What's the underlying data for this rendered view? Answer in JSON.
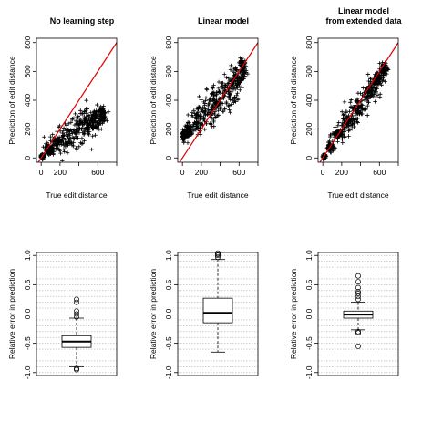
{
  "colors": {
    "diagonal": "#e00000",
    "points": "#000000",
    "grid": "#b0b0b0"
  },
  "chart_data": [
    {
      "type": "scatter",
      "title_lines": [
        "No learning step"
      ],
      "xlabel": "True edit distance",
      "ylabel": "Prediction of edit distance",
      "xlim": [
        -50,
        800
      ],
      "ylim": [
        -30,
        830
      ],
      "xticks": [
        0,
        200,
        600
      ],
      "yticks": [
        0,
        200,
        400,
        600,
        800
      ],
      "diagonal": "y = x",
      "marker": "+",
      "cloud": [
        {
          "x": 15,
          "y": 10,
          "sx": 10,
          "sy": 8
        },
        {
          "x": 80,
          "y": 55,
          "sx": 25,
          "sy": 20
        },
        {
          "x": 170,
          "y": 105,
          "sx": 40,
          "sy": 35
        },
        {
          "x": 280,
          "y": 150,
          "sx": 55,
          "sy": 50
        },
        {
          "x": 400,
          "y": 200,
          "sx": 60,
          "sy": 55
        },
        {
          "x": 500,
          "y": 235,
          "sx": 50,
          "sy": 50
        },
        {
          "x": 580,
          "y": 270,
          "sx": 35,
          "sy": 40
        },
        {
          "x": 650,
          "y": 300,
          "sx": 20,
          "sy": 25
        }
      ]
    },
    {
      "type": "scatter",
      "title_lines": [
        "Linear model"
      ],
      "xlabel": "True edit distance",
      "ylabel": "Prediction of edit distance",
      "xlim": [
        -50,
        800
      ],
      "ylim": [
        -30,
        830
      ],
      "xticks": [
        0,
        200,
        600
      ],
      "yticks": [
        0,
        200,
        400,
        600,
        800
      ],
      "diagonal": "y = x",
      "marker": "+",
      "cloud": [
        {
          "x": 10,
          "y": 150,
          "sx": 8,
          "sy": 20
        },
        {
          "x": 60,
          "y": 190,
          "sx": 20,
          "sy": 30
        },
        {
          "x": 150,
          "y": 250,
          "sx": 35,
          "sy": 45
        },
        {
          "x": 260,
          "y": 320,
          "sx": 50,
          "sy": 55
        },
        {
          "x": 370,
          "y": 390,
          "sx": 55,
          "sy": 60
        },
        {
          "x": 480,
          "y": 460,
          "sx": 50,
          "sy": 55
        },
        {
          "x": 570,
          "y": 540,
          "sx": 35,
          "sy": 45
        },
        {
          "x": 640,
          "y": 620,
          "sx": 20,
          "sy": 35
        }
      ]
    },
    {
      "type": "scatter",
      "title_lines": [
        "Linear model",
        "from extended data"
      ],
      "xlabel": "True edit distance",
      "ylabel": "Prediction of edit distance",
      "xlim": [
        -50,
        800
      ],
      "ylim": [
        -30,
        830
      ],
      "xticks": [
        0,
        200,
        600
      ],
      "yticks": [
        0,
        200,
        400,
        600,
        800
      ],
      "diagonal": "y = x",
      "marker": "+",
      "cloud": [
        {
          "x": 15,
          "y": 12,
          "sx": 8,
          "sy": 8
        },
        {
          "x": 80,
          "y": 75,
          "sx": 20,
          "sy": 15
        },
        {
          "x": 170,
          "y": 160,
          "sx": 35,
          "sy": 22
        },
        {
          "x": 270,
          "y": 250,
          "sx": 45,
          "sy": 28
        },
        {
          "x": 380,
          "y": 350,
          "sx": 50,
          "sy": 30
        },
        {
          "x": 480,
          "y": 450,
          "sx": 45,
          "sy": 28
        },
        {
          "x": 570,
          "y": 540,
          "sx": 35,
          "sy": 25
        },
        {
          "x": 650,
          "y": 620,
          "sx": 20,
          "sy": 20
        }
      ]
    },
    {
      "type": "box",
      "ylabel": "Relative error in prediction",
      "ylim": [
        -1.05,
        1.05
      ],
      "yticks": [
        -1.0,
        -0.5,
        0.0,
        0.5,
        1.0
      ],
      "ytick_labels": [
        "-1.0",
        "-0.5",
        "0.0",
        "0.5",
        "1.0"
      ],
      "grid": true,
      "box": {
        "whisker_low": -0.9,
        "q1": -0.57,
        "median": -0.47,
        "q3": -0.37,
        "whisker_high": -0.07
      },
      "outliers": [
        -0.93,
        -0.95,
        -0.05,
        0.0,
        0.05,
        0.2,
        0.25
      ]
    },
    {
      "type": "box",
      "ylabel": "Relative error in prediction",
      "ylim": [
        -1.05,
        1.05
      ],
      "yticks": [
        -1.0,
        -0.5,
        0.0,
        0.5,
        1.0
      ],
      "ytick_labels": [
        "-1.0",
        "-0.5",
        "0.0",
        "0.5",
        "1.0"
      ],
      "grid": true,
      "box": {
        "whisker_low": -0.65,
        "q1": -0.15,
        "median": 0.02,
        "q3": 0.27,
        "whisker_high": 0.93
      },
      "outliers": [
        0.97,
        1.0,
        1.02,
        1.04
      ]
    },
    {
      "type": "box",
      "ylabel": "Relative error in prediction",
      "ylim": [
        -1.05,
        1.05
      ],
      "yticks": [
        -1.0,
        -0.5,
        0.0,
        0.5,
        1.0
      ],
      "ytick_labels": [
        "-1.0",
        "-0.5",
        "0.0",
        "0.5",
        "1.0"
      ],
      "grid": true,
      "box": {
        "whisker_low": -0.27,
        "q1": -0.07,
        "median": -0.01,
        "q3": 0.05,
        "whisker_high": 0.2
      },
      "outliers": [
        -0.3,
        -0.32,
        -0.55,
        0.25,
        0.3,
        0.35,
        0.38,
        0.45,
        0.55,
        0.65
      ]
    }
  ]
}
